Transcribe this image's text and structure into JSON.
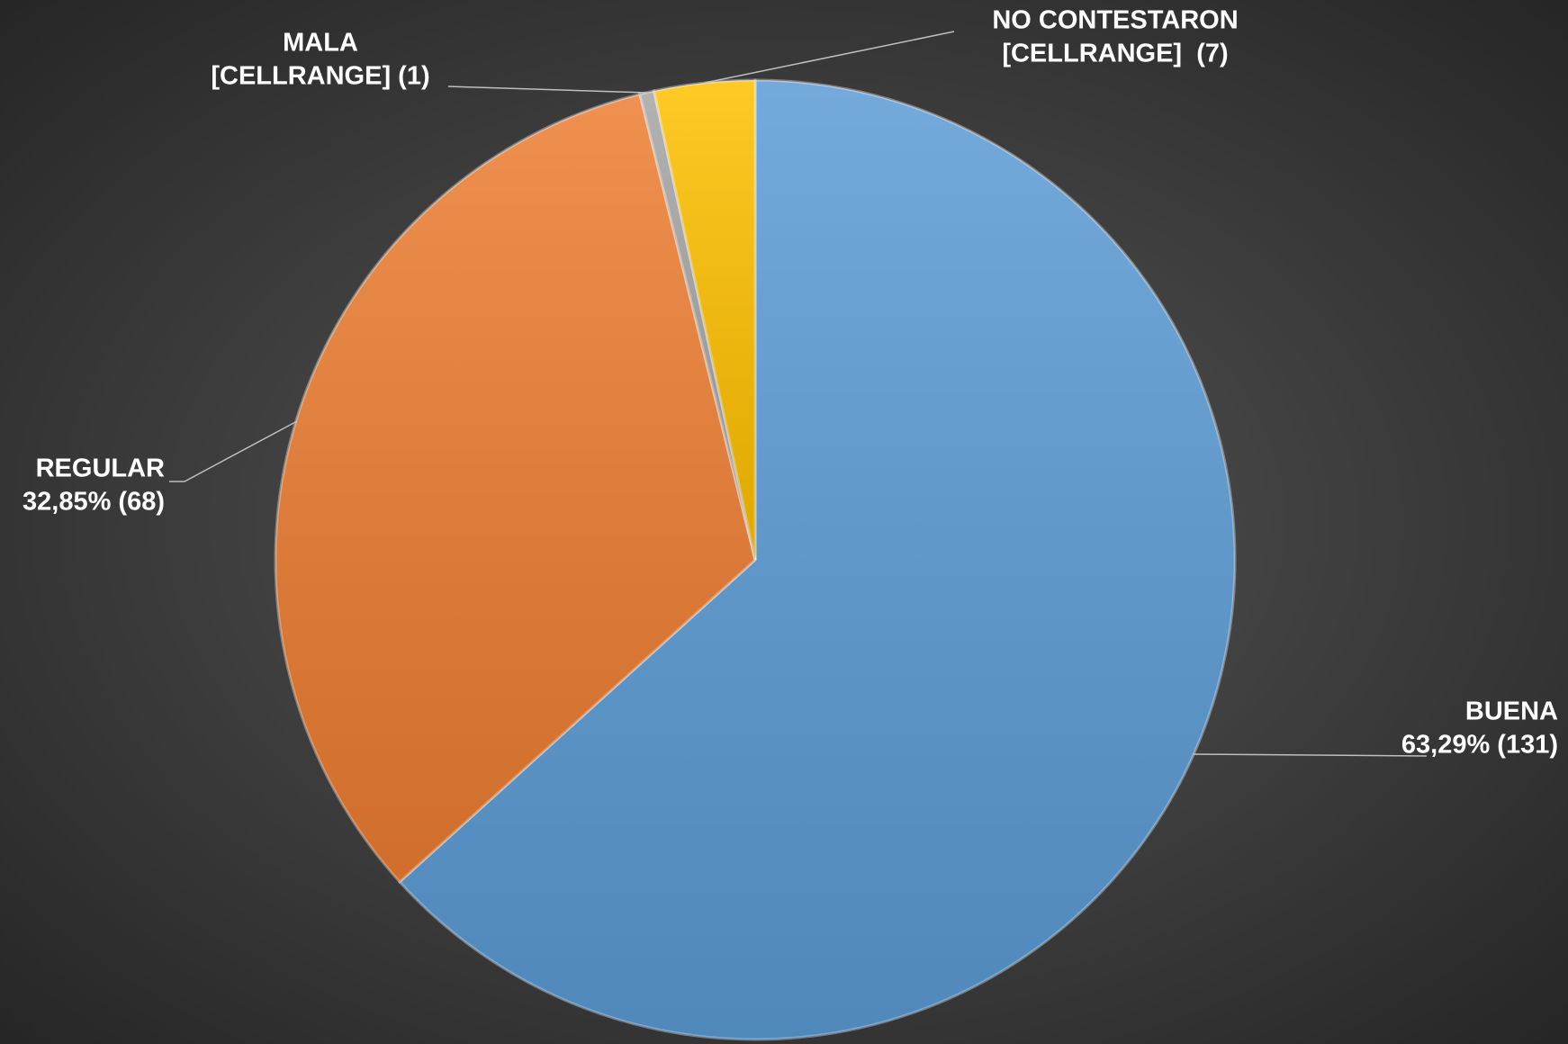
{
  "chart_data": {
    "type": "pie",
    "categories": [
      "BUENA",
      "REGULAR",
      "MALA",
      "NO CONTESTARON"
    ],
    "values": [
      131,
      68,
      1,
      7
    ],
    "value_labels": [
      "63,29% (131)",
      "32,85% (68)",
      "[CELLRANGE] (1)",
      "[CELLRANGE]  (7)"
    ],
    "colors": [
      "#5b9bd5",
      "#ed7d31",
      "#a5a5a5",
      "#ffc000"
    ]
  }
}
